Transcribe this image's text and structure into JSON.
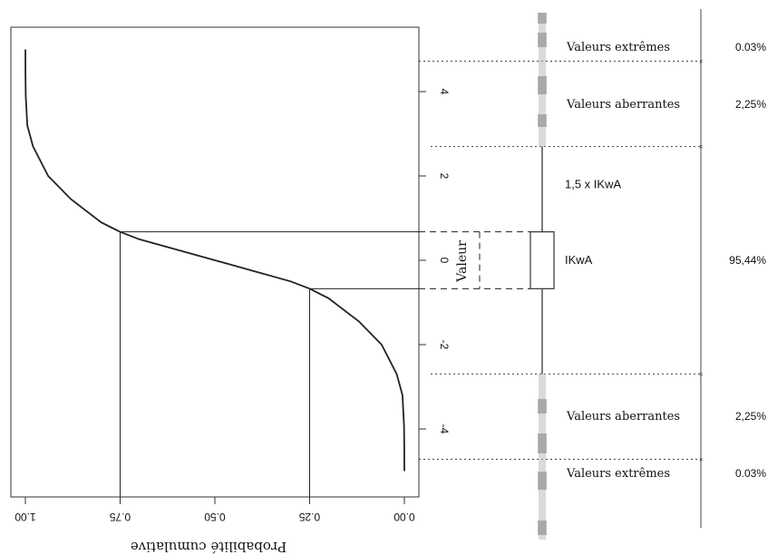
{
  "chart_data": {
    "type": "line",
    "xlabel": "Probabilité cumulative",
    "ylabel": "Valeur",
    "x_ticks": [
      "0.00",
      "0.25",
      "0.50",
      "0.75",
      "1.00"
    ],
    "y_ticks": [
      "-4",
      "-2",
      "0",
      "2",
      "4"
    ],
    "xlim": [
      0,
      1
    ],
    "ylim": [
      -5,
      5.4
    ],
    "curve": {
      "x": [
        0.0,
        0.0002,
        0.001,
        0.005,
        0.02,
        0.06,
        0.12,
        0.2,
        0.25,
        0.3,
        0.4,
        0.5,
        0.6,
        0.7,
        0.75,
        0.8,
        0.88,
        0.94,
        0.98,
        0.995,
        0.999,
        0.9998,
        1.0
      ],
      "y": [
        -5.0,
        -4.4,
        -3.9,
        -3.2,
        -2.7,
        -2.0,
        -1.45,
        -0.9,
        -0.674,
        -0.5,
        -0.25,
        0.0,
        0.25,
        0.5,
        0.674,
        0.9,
        1.45,
        2.0,
        2.7,
        3.2,
        3.9,
        4.4,
        5.0
      ]
    },
    "quartiles": [
      {
        "x": 0.25,
        "y": -0.674
      },
      {
        "x": 0.75,
        "y": 0.674
      }
    ],
    "whiskers": [
      -2.698,
      2.698
    ],
    "fences": [
      -4.721,
      4.721
    ],
    "zones": [
      {
        "label": "Valeurs extrêmes",
        "pct": "0.03%",
        "y": 5.05
      },
      {
        "label": "Valeurs aberrantes",
        "pct": "2,25%",
        "y": 3.7
      },
      {
        "label": "1,5 x IKwA",
        "pct": "",
        "y": 1.8
      },
      {
        "label": "IKwA",
        "pct": "95,44%",
        "y": 0.0
      },
      {
        "label": "Valeurs aberrantes",
        "pct": "2,25%",
        "y": -3.7
      },
      {
        "label": "Valeurs extrêmes",
        "pct": "0.03%",
        "y": -5.05
      }
    ],
    "grid": false,
    "colors": {
      "line": "#222222",
      "frame": "#333333",
      "dotted": "#666666",
      "shade": "#999999"
    }
  }
}
